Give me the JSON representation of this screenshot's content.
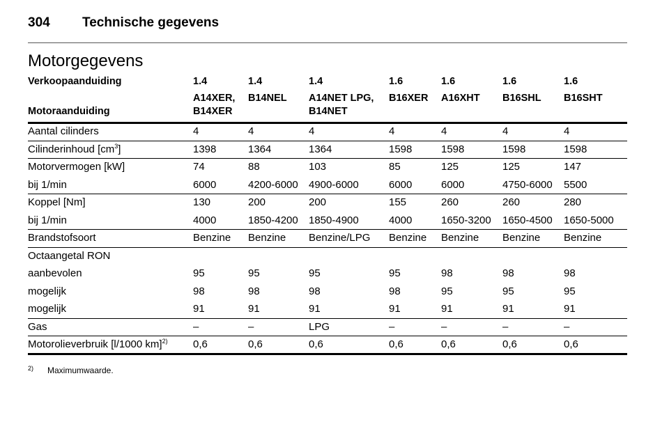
{
  "header": {
    "page_number": "304",
    "title": "Technische gegevens"
  },
  "section_title": "Motorgegevens",
  "table": {
    "header_rows": [
      {
        "label": "Verkoopaanduiding",
        "cells": [
          [
            "1.4"
          ],
          [
            "1.4"
          ],
          [
            "1.4"
          ],
          [
            "1.6"
          ],
          [
            "1.6"
          ],
          [
            "1.6"
          ],
          [
            "1.6"
          ]
        ]
      },
      {
        "label": "Motoraanduiding",
        "cells": [
          [
            "A14XER,",
            "B14XER"
          ],
          [
            "B14NEL"
          ],
          [
            "A14NET LPG,",
            "B14NET"
          ],
          [
            "B16XER"
          ],
          [
            "A16XHT"
          ],
          [
            "B16SHL"
          ],
          [
            "B16SHT"
          ]
        ]
      }
    ],
    "groups": [
      [
        {
          "label": "Aantal cilinders",
          "cells": [
            "4",
            "4",
            "4",
            "4",
            "4",
            "4",
            "4"
          ]
        }
      ],
      [
        {
          "label": "Cilinderinhoud [cm",
          "label_sup": "3",
          "label_end": "]",
          "cells": [
            "1398",
            "1364",
            "1364",
            "1598",
            "1598",
            "1598",
            "1598"
          ]
        }
      ],
      [
        {
          "label": "Motorvermogen [kW]",
          "cells": [
            "74",
            "88",
            "103",
            "85",
            "125",
            "125",
            "147"
          ]
        },
        {
          "label": "bij 1/min",
          "cells": [
            "6000",
            "4200-6000",
            "4900-6000",
            "6000",
            "6000",
            "4750-6000",
            "5500"
          ]
        }
      ],
      [
        {
          "label": "Koppel [Nm]",
          "cells": [
            "130",
            "200",
            "200",
            "155",
            "260",
            "260",
            "280"
          ]
        },
        {
          "label": "bij 1/min",
          "cells": [
            "4000",
            "1850-4200",
            "1850-4900",
            "4000",
            "1650-3200",
            "1650-4500",
            "1650-5000"
          ]
        }
      ],
      [
        {
          "label": "Brandstofsoort",
          "cells": [
            "Benzine",
            "Benzine",
            "Benzine/LPG",
            "Benzine",
            "Benzine",
            "Benzine",
            "Benzine"
          ]
        }
      ],
      [
        {
          "label": "Octaangetal RON",
          "cells": []
        },
        {
          "label": "aanbevolen",
          "cells": [
            "95",
            "95",
            "95",
            "95",
            "98",
            "98",
            "98"
          ]
        },
        {
          "label": "mogelijk",
          "cells": [
            "98",
            "98",
            "98",
            "98",
            "95",
            "95",
            "95"
          ]
        },
        {
          "label": "mogelijk",
          "cells": [
            "91",
            "91",
            "91",
            "91",
            "91",
            "91",
            "91"
          ]
        }
      ],
      [
        {
          "label": "Gas",
          "cells": [
            "–",
            "–",
            "LPG",
            "–",
            "–",
            "–",
            "–"
          ]
        }
      ],
      [
        {
          "label": "Motorolieverbruik [l/1000 km]",
          "label_sup": "2)",
          "cells": [
            "0,6",
            "0,6",
            "0,6",
            "0,6",
            "0,6",
            "0,6",
            "0,6"
          ]
        }
      ]
    ]
  },
  "footnote": {
    "marker": "2)",
    "text": "Maximumwaarde."
  }
}
